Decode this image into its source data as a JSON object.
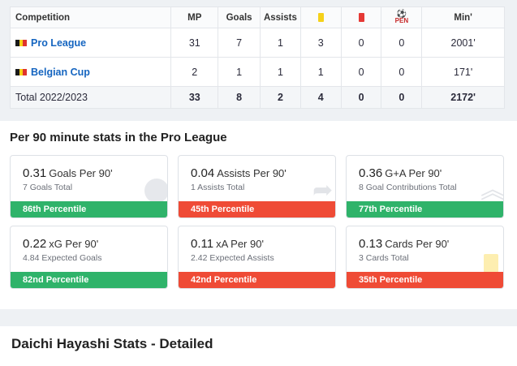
{
  "table": {
    "headers": {
      "competition": "Competition",
      "mp": "MP",
      "goals": "Goals",
      "assists": "Assists",
      "pen": "PEN",
      "min": "Min'"
    },
    "rows": [
      {
        "competition": "Pro League",
        "mp": "31",
        "goals": "7",
        "assists": "1",
        "yellow": "3",
        "red": "0",
        "pen": "0",
        "min": "2001'"
      },
      {
        "competition": "Belgian Cup",
        "mp": "2",
        "goals": "1",
        "assists": "1",
        "yellow": "1",
        "red": "0",
        "pen": "0",
        "min": "171'"
      }
    ],
    "total": {
      "label": "Total 2022/2023",
      "mp": "33",
      "goals": "8",
      "assists": "2",
      "yellow": "4",
      "red": "0",
      "pen": "0",
      "min": "2172'"
    },
    "flag_colors": [
      "#1a1a1a",
      "#f7d117",
      "#e0322c"
    ]
  },
  "per90": {
    "title": "Per 90 minute stats in the Pro League",
    "cards": [
      {
        "value": "0.31",
        "label": "Goals Per 90'",
        "sub": "7 Goals Total",
        "percentile": "86th Percentile",
        "status": "green",
        "icon": "football-icon"
      },
      {
        "value": "0.04",
        "label": "Assists Per 90'",
        "sub": "1 Assists Total",
        "percentile": "45th Percentile",
        "status": "red",
        "icon": "share-arrow-icon"
      },
      {
        "value": "0.36",
        "label": "G+A Per 90'",
        "sub": "8 Goal Contributions Total",
        "percentile": "77th Percentile",
        "status": "green",
        "icon": "chevrons-up-icon"
      },
      {
        "value": "0.22",
        "label": "xG Per 90'",
        "sub": "4.84 Expected Goals",
        "percentile": "82nd Percentile",
        "status": "green",
        "icon": ""
      },
      {
        "value": "0.11",
        "label": "xA Per 90'",
        "sub": "2.42 Expected Assists",
        "percentile": "42nd Percentile",
        "status": "red",
        "icon": ""
      },
      {
        "value": "0.13",
        "label": "Cards Per 90'",
        "sub": "3 Cards Total",
        "percentile": "35th Percentile",
        "status": "red",
        "icon": "yellow-card-icon"
      }
    ]
  },
  "detailed_title": "Daichi Hayashi Stats - Detailed"
}
